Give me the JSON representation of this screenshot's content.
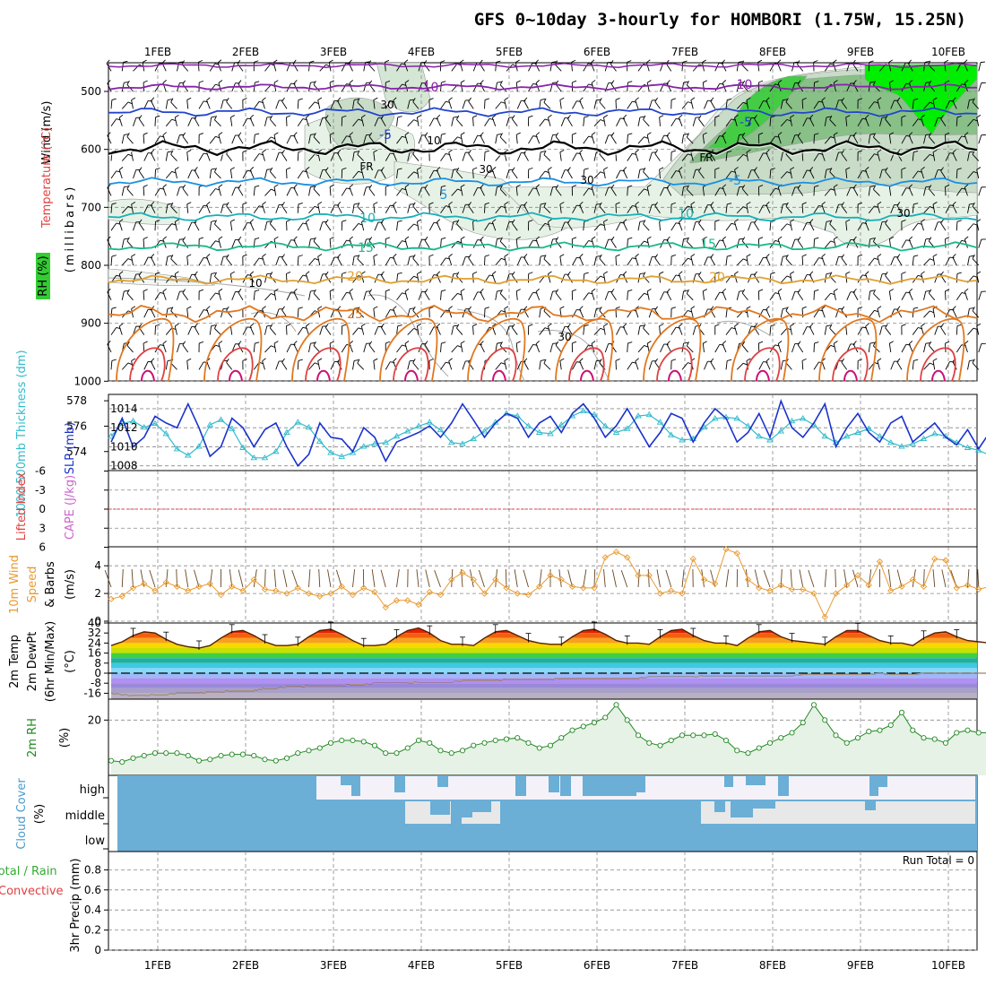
{
  "title": "GFS 0~10day 3-hourly for HOMBORI (1.75W, 15.25N)",
  "date_labels": [
    "1FEB",
    "2FEB",
    "3FEB",
    "4FEB",
    "5FEB",
    "6FEB",
    "7FEB",
    "8FEB",
    "9FEB",
    "10FEB"
  ],
  "panels": {
    "upper": {
      "ylabel_pressure": "(millibars)",
      "ylabel_wind": "Wind (m/s)",
      "ylabel_temp": "Temperature (°C)",
      "ylabel_rh": "RH (%)",
      "ticks": [
        "500",
        "600",
        "700",
        "800",
        "900",
        "1000"
      ],
      "freezing_label": "FR",
      "rh_labels": [
        "30",
        "10",
        "30",
        "30",
        "30",
        "10",
        "30"
      ],
      "temp_contour_labels": [
        "-10",
        "-5",
        "5",
        "10",
        "15",
        "20",
        "25",
        "-10",
        "-5",
        "-5",
        "10",
        "15",
        "20"
      ]
    },
    "thickness": {
      "ylabel_thick": "1000-500mb Thickness (dm)",
      "ylabel_slp": "SLP (mb)",
      "left_ticks": [
        "578",
        "576",
        "574"
      ],
      "right_ticks": [
        "1014",
        "1012",
        "1010",
        "1008"
      ]
    },
    "cape": {
      "ylabel_li": "Lifted Index",
      "ylabel_cape": "CAPE (J/kg)",
      "ticks": [
        "-6",
        "-3",
        "0",
        "3",
        "6"
      ]
    },
    "wind10m": {
      "ylabel1": "10m Wind",
      "ylabel2": "Speed",
      "ylabel3": "& Barbs",
      "ylabel_unit": "(m/s)",
      "ticks": [
        "4",
        "2",
        "0"
      ]
    },
    "temp2m": {
      "ylabel1": "2m Temp",
      "ylabel2": "2m DewPt",
      "ylabel3": "(6hr Min/Max)",
      "ylabel_unit": "(°C)",
      "ticks": [
        "40",
        "32",
        "24",
        "16",
        "8",
        "0",
        "-8",
        "-16"
      ]
    },
    "rh2m": {
      "ylabel": "2m RH",
      "ylabel_unit": "(%)",
      "ticks": [
        "20"
      ]
    },
    "cloud": {
      "ylabel": "Cloud Cover",
      "ylabel_unit": "(%)",
      "levels": [
        "high",
        "middle",
        "low"
      ]
    },
    "precip": {
      "ylabel1": "Total / Rain",
      "ylabel2": "Convective",
      "ylabel3": "3hr Precip (mm)",
      "ticks": [
        "0.8",
        "0.6",
        "0.4",
        "0.2",
        "0"
      ],
      "run_total": "Run Total = 0"
    }
  },
  "colors": {
    "thickness": "#33bbcc",
    "slp": "#1a33cc",
    "wind_speed": "#e89a30",
    "rh_fill": "#e6f2e6",
    "rh_line": "#228822",
    "cloud": "#6baed6",
    "li_zero": "#e04040",
    "cape_label": "#cc66cc",
    "temp_label": "#e04040"
  },
  "chart_data": [
    {
      "type": "line",
      "title": "1000-500mb Thickness (dm) / SLP (mb)",
      "x_labels": [
        "1FEB",
        "2FEB",
        "3FEB",
        "4FEB",
        "5FEB",
        "6FEB",
        "7FEB",
        "8FEB",
        "9FEB",
        "10FEB"
      ],
      "series": [
        {
          "name": "1000-500mb Thickness (dm)",
          "values": [
            575.2,
            576.2,
            576.4,
            575.9,
            576.2,
            575.4,
            574.2,
            573.7,
            574.4,
            576.1,
            576.5,
            575.8,
            574.3,
            573.5,
            573.5,
            574.0,
            575.5,
            576.3,
            575.9,
            574.8,
            573.9,
            573.6,
            573.9,
            574.4,
            574.6,
            574.7,
            575.2,
            575.6,
            576.0,
            576.3,
            575.7,
            574.7,
            574.6,
            575.0,
            575.6,
            576.3,
            577.0,
            576.8,
            576.0,
            575.5,
            575.4,
            576.1,
            576.8,
            577.2,
            576.9,
            576.0,
            575.5,
            575.8,
            576.8,
            576.9,
            576.3,
            575.3,
            574.9,
            575.0,
            575.9,
            576.6,
            576.7,
            576.6,
            576.0,
            575.2,
            574.9,
            575.6,
            576.4,
            576.6,
            576.1,
            575.2,
            574.7,
            575.2,
            575.5,
            575.8,
            575.2,
            574.7,
            574.4,
            574.6,
            575.0,
            575.4,
            575.2,
            574.7,
            574.3,
            574.1,
            573.7
          ]
        },
        {
          "name": "SLP (mb)",
          "values": [
            1010.5,
            1013.0,
            1010.0,
            1011.0,
            1013.2,
            1012.5,
            1012.0,
            1014.5,
            1012.0,
            1009.0,
            1010.0,
            1013.0,
            1012.0,
            1010.0,
            1011.8,
            1012.5,
            1010.0,
            1008.0,
            1009.2,
            1012.5,
            1011.0,
            1010.8,
            1009.5,
            1012.0,
            1011.0,
            1008.5,
            1010.5,
            1011.0,
            1011.5,
            1012.2,
            1011.0,
            1012.5,
            1014.5,
            1012.8,
            1011.0,
            1012.5,
            1013.5,
            1013.0,
            1011.0,
            1012.5,
            1013.2,
            1011.5,
            1013.5,
            1014.5,
            1013.0,
            1011.0,
            1012.2,
            1014.0,
            1012.0,
            1010.0,
            1011.5,
            1013.5,
            1013.0,
            1010.5,
            1012.5,
            1014.0,
            1013.0,
            1010.5,
            1011.5,
            1013.5,
            1011.0,
            1014.8,
            1012.0,
            1011.0,
            1012.5,
            1014.5,
            1010.0,
            1012.0,
            1013.5,
            1011.5,
            1010.5,
            1012.5,
            1013.2,
            1010.5,
            1011.5,
            1012.5,
            1011.0,
            1010.2,
            1011.8,
            1009.8,
            1011.5
          ]
        }
      ],
      "ylim_thickness": [
        572.5,
        578.5
      ],
      "ylim_slp": [
        1007.5,
        1015.5
      ]
    },
    {
      "type": "line",
      "title": "Lifted Index / CAPE (J/kg)",
      "ylim": [
        -6,
        6
      ],
      "series": [
        {
          "name": "Lifted Index",
          "values": []
        }
      ]
    },
    {
      "type": "line",
      "title": "10m Wind Speed & Barbs (m/s)",
      "ylim": [
        0,
        5.5
      ],
      "series": [
        {
          "name": "10m Wind Speed",
          "values": [
            1.6,
            1.8,
            2.4,
            2.7,
            2.2,
            2.8,
            2.5,
            2.2,
            2.5,
            2.7,
            1.9,
            2.5,
            2.2,
            3.0,
            2.3,
            2.2,
            2.0,
            2.4,
            2.0,
            1.8,
            2.0,
            2.5,
            1.9,
            2.4,
            2.1,
            1.0,
            1.5,
            1.5,
            1.2,
            2.1,
            1.9,
            3.0,
            3.5,
            3.0,
            2.0,
            3.0,
            2.4,
            2.0,
            1.9,
            2.5,
            3.3,
            3.0,
            2.5,
            2.4,
            2.4,
            4.6,
            5.0,
            4.6,
            3.3,
            3.3,
            2.0,
            2.2,
            2.0,
            4.5,
            3.0,
            2.7,
            5.2,
            4.9,
            3.0,
            2.4,
            2.2,
            2.6,
            2.3,
            2.3,
            2.0,
            0.3,
            2.0,
            2.6,
            3.3,
            2.6,
            4.3,
            2.2,
            2.5,
            3.0,
            2.5,
            4.5,
            4.4,
            2.4,
            2.6,
            2.3,
            2.5,
            2.0,
            2.7,
            2.7,
            5.1,
            2.5,
            2.4,
            2.0,
            2.5,
            2.9,
            1.1,
            2.5,
            3.0
          ]
        }
      ]
    },
    {
      "type": "area",
      "title": "2m Temp / 2m DewPt (6hr Min/Max) (°C)",
      "ylim": [
        -22,
        42
      ],
      "series": [
        {
          "name": "2m Temp",
          "values": [
            22,
            25,
            30,
            33,
            32,
            27,
            23,
            21,
            20,
            22,
            28,
            33,
            34,
            30,
            25,
            22,
            22,
            23,
            29,
            34,
            35,
            31,
            26,
            22,
            22,
            23,
            29,
            34,
            36,
            32,
            26,
            23,
            23,
            22,
            28,
            33,
            34,
            30,
            26,
            24,
            23,
            23,
            29,
            34,
            35,
            31,
            26,
            24,
            24,
            23,
            29,
            34,
            35,
            30,
            26,
            24,
            24,
            22,
            28,
            33,
            34,
            29,
            26,
            25,
            24,
            23,
            29,
            34,
            34,
            30,
            26,
            24,
            24,
            22,
            28,
            32,
            33,
            29,
            26,
            25,
            24,
            25,
            28,
            32,
            32,
            28,
            25,
            25,
            24,
            24,
            24
          ]
        },
        {
          "name": "2m DewPt",
          "values": [
            -16,
            -17,
            -18,
            -18,
            -17,
            -17,
            -16,
            -16,
            -16,
            -15,
            -15,
            -14,
            -14,
            -14,
            -12,
            -12,
            -11,
            -11,
            -10,
            -10,
            -10,
            -10,
            -9,
            -9,
            -8,
            -8,
            -8,
            -8,
            -7,
            -7,
            -7,
            -7,
            -6,
            -6,
            -6,
            -6,
            -5,
            -5,
            -5,
            -5,
            -5,
            -4,
            -4,
            -4,
            -4,
            -4,
            -4,
            -4,
            -4,
            -3,
            -3,
            -3,
            -3,
            -3,
            -2,
            -2,
            -2,
            -2,
            -2,
            -2,
            -2,
            -2,
            -2,
            -1,
            -1,
            -1,
            -1,
            -1,
            -1,
            -1,
            0,
            -1,
            -1,
            -1,
            0,
            0,
            0,
            0,
            0,
            0,
            0,
            -1,
            -1,
            0,
            0,
            0,
            0,
            0,
            0,
            0,
            0
          ]
        }
      ]
    },
    {
      "type": "area",
      "title": "2m RH (%)",
      "ylim": [
        0,
        28
      ],
      "series": [
        {
          "name": "2m RH",
          "values": [
            4,
            3.5,
            5,
            6,
            7,
            7,
            7,
            6,
            4,
            4.5,
            6,
            6.5,
            6.5,
            6,
            4.5,
            4,
            5,
            7,
            8,
            9,
            11,
            12,
            12,
            11.5,
            10,
            7,
            7,
            9,
            12,
            11,
            8,
            7,
            8,
            10,
            11,
            12,
            12.5,
            13,
            11,
            9,
            10,
            13,
            16,
            17.5,
            19,
            21,
            26,
            20,
            14,
            11,
            10,
            12,
            14,
            14,
            14,
            14.5,
            12,
            8,
            7,
            9,
            11,
            13,
            15,
            19,
            26,
            20,
            14,
            11,
            13,
            15.5,
            16,
            18,
            23,
            16,
            13,
            12.5,
            11,
            15,
            16,
            15,
            15,
            14,
            18,
            16,
            13,
            12,
            11,
            13,
            15,
            17,
            19,
            20,
            20,
            20
          ]
        }
      ]
    },
    {
      "type": "heatmap",
      "title": "Cloud Cover (%)",
      "levels": [
        "high",
        "middle",
        "low"
      ]
    },
    {
      "type": "bar",
      "title": "3hr Precip (mm)",
      "ylim": [
        0,
        1
      ],
      "values": []
    }
  ]
}
